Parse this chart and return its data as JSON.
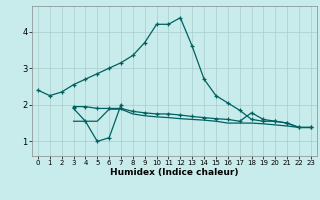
{
  "xlabel": "Humidex (Indice chaleur)",
  "background_color": "#c8ecec",
  "grid_color": "#aacccc",
  "line_color": "#006060",
  "xlim": [
    -0.5,
    23.5
  ],
  "ylim": [
    0.6,
    4.7
  ],
  "xticks": [
    0,
    1,
    2,
    3,
    4,
    5,
    6,
    7,
    8,
    9,
    10,
    11,
    12,
    13,
    14,
    15,
    16,
    17,
    18,
    19,
    20,
    21,
    22,
    23
  ],
  "yticks": [
    1,
    2,
    3,
    4
  ],
  "series": [
    {
      "x": [
        0,
        1,
        2,
        3,
        4,
        5,
        6,
        7,
        8,
        9,
        10,
        11,
        12,
        13,
        14,
        15,
        16,
        17,
        18,
        19,
        20,
        21,
        22,
        23
      ],
      "y": [
        2.4,
        2.25,
        2.35,
        2.55,
        2.7,
        2.85,
        3.0,
        3.15,
        3.35,
        3.7,
        4.2,
        4.2,
        4.38,
        3.6,
        2.7,
        2.25,
        2.05,
        1.85,
        1.6,
        1.55,
        1.55,
        1.5,
        1.38,
        1.38
      ],
      "marker": true
    },
    {
      "x": [
        3,
        4,
        5,
        6,
        7
      ],
      "y": [
        1.9,
        1.55,
        1.0,
        1.1,
        2.0
      ],
      "marker": true
    },
    {
      "x": [
        3,
        4,
        5,
        6,
        7,
        8,
        9,
        10,
        11,
        12,
        13,
        14,
        15,
        16,
        17,
        18,
        19,
        20,
        21,
        22,
        23
      ],
      "y": [
        1.95,
        1.95,
        1.9,
        1.9,
        1.9,
        1.82,
        1.78,
        1.75,
        1.75,
        1.72,
        1.68,
        1.65,
        1.62,
        1.6,
        1.55,
        1.78,
        1.6,
        1.55,
        1.5,
        1.38,
        1.38
      ],
      "marker": true
    },
    {
      "x": [
        3,
        4,
        5,
        6,
        7,
        8,
        9,
        10,
        11,
        12,
        13,
        14,
        15,
        16,
        17,
        18,
        19,
        20,
        21,
        22,
        23
      ],
      "y": [
        1.55,
        1.55,
        1.55,
        1.88,
        1.88,
        1.75,
        1.7,
        1.67,
        1.65,
        1.62,
        1.6,
        1.58,
        1.55,
        1.5,
        1.5,
        1.5,
        1.48,
        1.45,
        1.42,
        1.38,
        1.38
      ],
      "marker": false
    }
  ]
}
